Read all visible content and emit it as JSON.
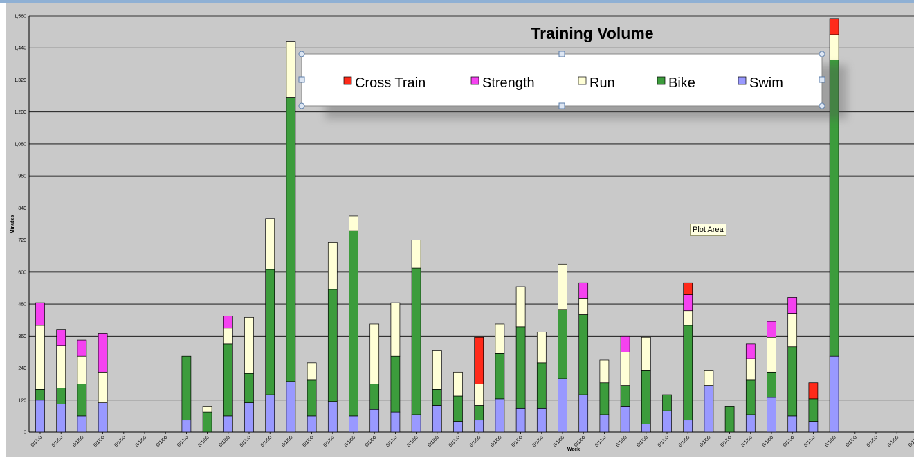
{
  "window": {
    "resize_grip_icon": "grip-dots-icon"
  },
  "tooltip": {
    "text": "Plot Area"
  },
  "colors": {
    "plot_background": "#c9c9c9",
    "gridline": "#000000",
    "Cross Train": "#ff2a1a",
    "Strength": "#f542f0",
    "Run": "#ffffd6",
    "Bike": "#3c9c3c",
    "Swim": "#9999ff"
  },
  "chart_data": {
    "type": "bar",
    "stacked": true,
    "title": "Training Volume",
    "xlabel": "Week",
    "ylabel": "Minutes",
    "ylim": [
      0,
      1560
    ],
    "yticks": [
      0,
      120,
      240,
      360,
      480,
      600,
      720,
      840,
      960,
      1080,
      1200,
      1320,
      1440,
      1560
    ],
    "ytick_labels": [
      "0",
      "120",
      "240",
      "360",
      "480",
      "600",
      "720",
      "840",
      "960",
      "1,080",
      "1,200",
      "1,320",
      "1,440",
      "1,560"
    ],
    "grid": true,
    "legend_position": "top",
    "legend_order": [
      "Cross Train",
      "Strength",
      "Run",
      "Bike",
      "Swim"
    ],
    "categories": [
      "0/1/00",
      "0/1/00",
      "0/1/00",
      "0/1/00",
      "0/1/00",
      "0/1/00",
      "0/1/00",
      "0/1/00",
      "0/1/00",
      "0/1/00",
      "0/1/00",
      "0/1/00",
      "0/1/00",
      "0/1/00",
      "0/1/00",
      "0/1/00",
      "0/1/00",
      "0/1/00",
      "0/1/00",
      "0/1/00",
      "0/1/00",
      "0/1/00",
      "0/1/00",
      "0/1/00",
      "0/1/00",
      "0/1/00",
      "0/1/00",
      "0/1/00",
      "0/1/00",
      "0/1/00",
      "0/1/00",
      "0/1/00",
      "0/1/00",
      "0/1/00",
      "0/1/00",
      "0/1/00",
      "0/1/00",
      "0/1/00",
      "0/1/00",
      "0/1/00",
      "0/1/00",
      "0/1/00",
      "0/1/00",
      "0/1/00"
    ],
    "series": [
      {
        "name": "Swim",
        "values": [
          120,
          105,
          60,
          110,
          0,
          0,
          0,
          45,
          0,
          60,
          110,
          140,
          190,
          60,
          115,
          60,
          85,
          75,
          65,
          100,
          40,
          45,
          125,
          90,
          90,
          200,
          140,
          65,
          95,
          30,
          80,
          45,
          175,
          0,
          65,
          130,
          60,
          40,
          285,
          0,
          0,
          0,
          0,
          0
        ]
      },
      {
        "name": "Bike",
        "values": [
          40,
          60,
          120,
          0,
          0,
          0,
          0,
          240,
          75,
          270,
          110,
          470,
          1065,
          135,
          420,
          695,
          95,
          210,
          550,
          60,
          95,
          55,
          170,
          305,
          170,
          260,
          300,
          120,
          80,
          200,
          60,
          355,
          0,
          95,
          130,
          95,
          260,
          85,
          1110,
          0,
          0,
          0,
          0,
          0
        ]
      },
      {
        "name": "Run",
        "values": [
          240,
          160,
          105,
          115,
          0,
          0,
          0,
          0,
          20,
          60,
          210,
          190,
          210,
          65,
          175,
          55,
          225,
          200,
          105,
          145,
          90,
          80,
          110,
          150,
          115,
          170,
          60,
          85,
          125,
          125,
          0,
          55,
          55,
          0,
          80,
          130,
          125,
          0,
          95,
          0,
          0,
          0,
          0,
          0
        ]
      },
      {
        "name": "Strength",
        "values": [
          85,
          60,
          60,
          145,
          0,
          0,
          0,
          0,
          0,
          45,
          0,
          0,
          0,
          0,
          0,
          0,
          0,
          0,
          0,
          0,
          0,
          0,
          0,
          0,
          0,
          0,
          60,
          0,
          60,
          0,
          0,
          60,
          0,
          0,
          55,
          60,
          60,
          0,
          0,
          0,
          0,
          0,
          0,
          0
        ]
      },
      {
        "name": "Cross Train",
        "values": [
          0,
          0,
          0,
          0,
          0,
          0,
          0,
          0,
          0,
          0,
          0,
          0,
          0,
          0,
          0,
          0,
          0,
          0,
          0,
          0,
          0,
          0,
          0,
          0,
          0,
          0,
          0,
          0,
          0,
          0,
          0,
          0,
          0,
          0,
          0,
          0,
          0,
          0,
          0,
          0,
          0,
          0,
          0,
          0
        ]
      }
    ],
    "cross_train_extra": {
      "values": [
        0,
        0,
        0,
        0,
        0,
        0,
        0,
        0,
        0,
        0,
        0,
        0,
        0,
        0,
        0,
        0,
        0,
        0,
        0,
        0,
        0,
        175,
        0,
        0,
        0,
        0,
        0,
        0,
        0,
        0,
        0,
        45,
        0,
        0,
        0,
        0,
        0,
        60,
        60,
        0,
        0,
        0,
        0,
        0
      ]
    }
  }
}
